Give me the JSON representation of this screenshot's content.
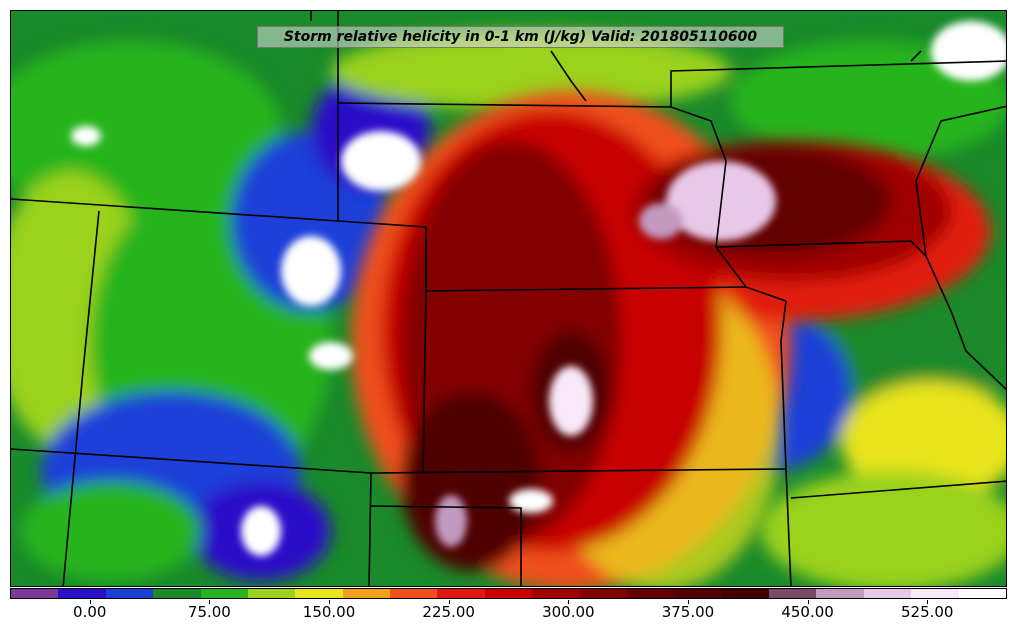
{
  "title": "Storm relative helicity in 0-1 km (J/kg) Valid: 201805110600",
  "colorbar": {
    "colors": [
      "#7a3a9a",
      "#2a10c8",
      "#1a40d8",
      "#1a8a2a",
      "#28b41e",
      "#9ad21e",
      "#e8e41e",
      "#f0a21e",
      "#f0501e",
      "#e01a10",
      "#c80000",
      "#a00000",
      "#820000",
      "#640000",
      "#500000",
      "#420000",
      "#7a4a6a",
      "#c29ac0",
      "#e8c8e8",
      "#f8e8f8",
      "#ffffff"
    ],
    "tick_labels": [
      "0.00",
      "75.00",
      "150.00",
      "225.00",
      "300.00",
      "375.00",
      "450.00",
      "525.00"
    ],
    "range": [
      -50,
      575
    ]
  },
  "map": {
    "region": "central-us-plains",
    "boundary_color": "#000000"
  }
}
